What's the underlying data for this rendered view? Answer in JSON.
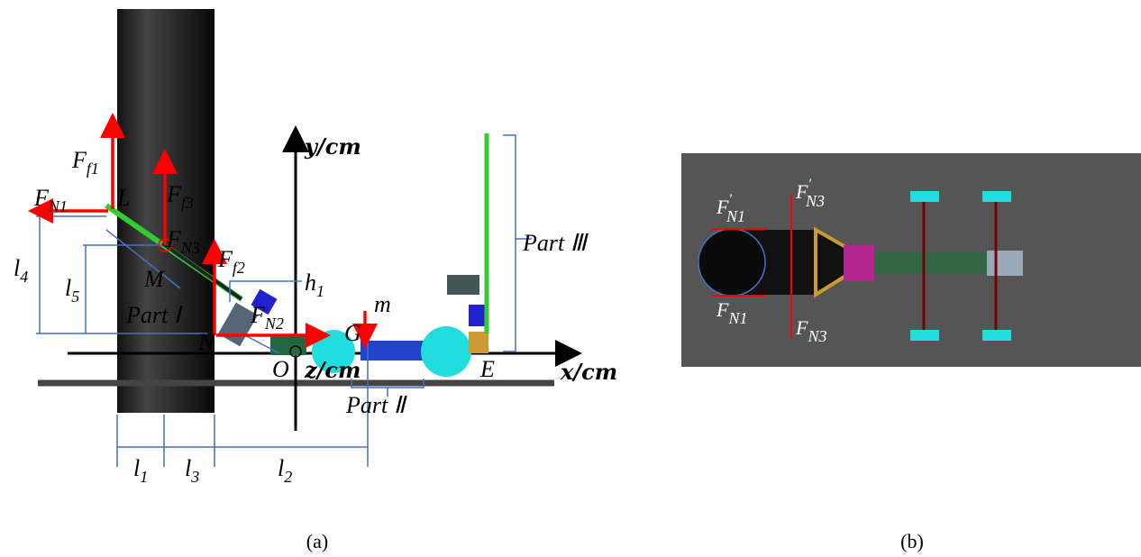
{
  "panel_a": {
    "labels": [
      {
        "text": "F",
        "sub": "f1"
      },
      {
        "text": "F",
        "sub": "N1"
      },
      {
        "text": "L"
      },
      {
        "text": "F",
        "sub": "f3"
      },
      {
        "text": "F",
        "sub": "N3"
      },
      {
        "text": "M"
      },
      {
        "text": "F",
        "sub": "f2"
      },
      {
        "text": "l",
        "sub": "4"
      },
      {
        "text": "l",
        "sub": "5"
      },
      {
        "text": "Part Ⅰ"
      },
      {
        "text": "F",
        "sub": "N2"
      },
      {
        "text": "N"
      },
      {
        "text": "h",
        "sub": "1"
      },
      {
        "text": "m"
      },
      {
        "text": "G"
      },
      {
        "text": "y/cm"
      },
      {
        "text": "O"
      },
      {
        "text": "z/cm"
      },
      {
        "text": "E"
      },
      {
        "text": "x/cm"
      },
      {
        "text": "Part Ⅱ"
      },
      {
        "text": "Part Ⅲ"
      },
      {
        "text": "l",
        "sub": "1"
      },
      {
        "text": "l",
        "sub": "3"
      },
      {
        "text": "l",
        "sub": "2"
      }
    ],
    "caption": "(a)"
  },
  "panel_b": {
    "labels": [
      {
        "text": "F",
        "sup": "′",
        "sub": "N1"
      },
      {
        "text": "F",
        "sup": "′",
        "sub": "N3"
      },
      {
        "text": "F",
        "sub": "N1"
      },
      {
        "text": "F",
        "sub": "N3"
      }
    ],
    "caption": "(b)"
  }
}
